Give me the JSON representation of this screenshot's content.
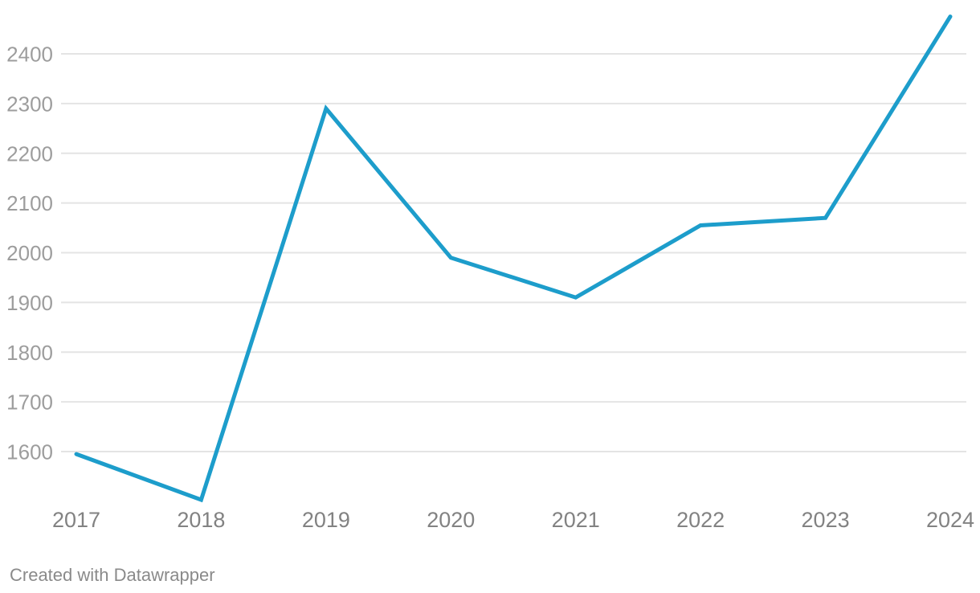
{
  "chart_data": {
    "type": "line",
    "x": [
      "2017",
      "2018",
      "2019",
      "2020",
      "2021",
      "2022",
      "2023",
      "2024"
    ],
    "series": [
      {
        "name": "value",
        "values": [
          1595,
          1503,
          2290,
          1990,
          1910,
          2055,
          2070,
          2475
        ]
      }
    ],
    "title": "",
    "xlabel": "",
    "ylabel": "",
    "yticks": [
      1600,
      1700,
      1800,
      1900,
      2000,
      2100,
      2200,
      2300,
      2400
    ],
    "ylim": [
      1490,
      2510
    ],
    "grid": "horizontal",
    "legend": "none",
    "markers": "none",
    "colors": {
      "line": "#1d9dcb",
      "grid": "#e4e4e4",
      "y_tick_label": "#9d9d9d",
      "x_tick_label": "#828282",
      "attribution": "#8a8a8a",
      "background": "#ffffff"
    }
  },
  "footer": {
    "attribution": "Created with Datawrapper"
  }
}
